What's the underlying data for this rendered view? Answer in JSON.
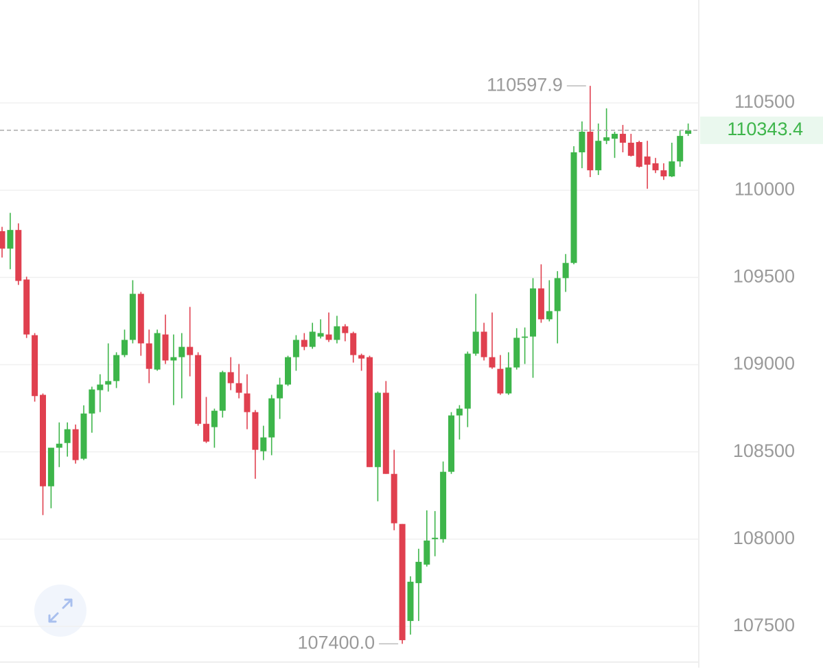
{
  "chart_data": {
    "type": "candlestick",
    "up_color": "#3db54a",
    "down_color": "#e0404f",
    "ylim": [
      107264,
      111090
    ],
    "yticks": [
      107500,
      108000,
      108500,
      109000,
      109500,
      110000,
      110500
    ],
    "grid": true,
    "high_marker": 110597.9,
    "low_marker": {
      "value": 107400,
      "label": "107400.0"
    },
    "last_price": 110343.4,
    "open": [
      109765,
      109665,
      109772,
      109488,
      109169,
      108827,
      108303,
      108524,
      108551,
      108630,
      108461,
      108720,
      108854,
      108886,
      108906,
      109055,
      109142,
      109406,
      109122,
      108972,
      109173,
      109024,
      109043,
      109102,
      109055,
      108661,
      108642,
      108736,
      108957,
      108894,
      108835,
      108728,
      108504,
      108583,
      108807,
      108886,
      109043,
      109142,
      109102,
      109161,
      109173,
      109142,
      109220,
      109181,
      109055,
      109043,
      108413,
      108839,
      108374,
      108087,
      107531,
      107748,
      107854,
      108000,
      108000,
      108386,
      108709,
      108748,
      109063,
      109189,
      109043,
      108976,
      108835,
      108984,
      109154,
      109161,
      109437,
      109260,
      109307,
      109496,
      109583,
      110217,
      110335,
      110114,
      110283,
      110295,
      110323,
      110272,
      110276,
      110193,
      110154,
      110114,
      110079,
      110165,
      110323
    ],
    "high": [
      109790,
      109870,
      109810,
      109504,
      109181,
      108835,
      108524,
      108669,
      108669,
      108657,
      108767,
      108874,
      108945,
      109122,
      109071,
      109201,
      109484,
      109417,
      109201,
      109201,
      109287,
      109173,
      109181,
      109331,
      109071,
      108815,
      108748,
      108965,
      109043,
      109004,
      108945,
      108740,
      108650,
      108827,
      108925,
      109051,
      109169,
      109181,
      109240,
      109260,
      109299,
      109280,
      109232,
      109189,
      109063,
      109051,
      108846,
      108906,
      108512,
      108087,
      107787,
      107945,
      108165,
      108161,
      108445,
      108728,
      108768,
      109075,
      109406,
      109240,
      109299,
      109055,
      109071,
      109209,
      109213,
      109496,
      109575,
      109484,
      109536,
      109634,
      110252,
      110394,
      110597.9,
      110382,
      110469,
      110335,
      110374,
      110323,
      110283,
      110283,
      110185,
      110154,
      110272,
      110343,
      110382
    ],
    "low": [
      109614,
      109547,
      109457,
      109153,
      108788,
      108138,
      108177,
      108413,
      108473,
      108433,
      108453,
      108610,
      108728,
      108846,
      108866,
      109043,
      109122,
      109051,
      108894,
      108965,
      109004,
      108768,
      108807,
      108933,
      108650,
      108551,
      108524,
      108697,
      108854,
      108807,
      108630,
      108346,
      108453,
      108481,
      108689,
      108878,
      108965,
      109083,
      109091,
      109150,
      109130,
      109122,
      109134,
      109012,
      108965,
      108413,
      108217,
      108374,
      108051,
      107400,
      107453,
      107531,
      107843,
      107902,
      107980,
      108374,
      108571,
      108642,
      109051,
      109024,
      108976,
      108827,
      108827,
      108972,
      109004,
      108925,
      109240,
      109248,
      109122,
      109417,
      109575,
      110126,
      110075,
      110087,
      110264,
      110185,
      110217,
      110193,
      110130,
      110008,
      110098,
      110059,
      110075,
      110134,
      110311
    ],
    "close": [
      109665,
      109772,
      109480,
      109173,
      108820,
      108303,
      108524,
      108547,
      108630,
      108453,
      108720,
      108858,
      108886,
      108906,
      109055,
      109142,
      109406,
      109122,
      108976,
      109181,
      109024,
      109043,
      109102,
      109055,
      108661,
      108559,
      108736,
      108957,
      108894,
      108839,
      108728,
      108512,
      108583,
      108807,
      108886,
      109043,
      109142,
      109102,
      109189,
      109181,
      109142,
      109220,
      109181,
      109055,
      109035,
      108413,
      108839,
      108374,
      108091,
      107421,
      107756,
      107870,
      107992,
      108008,
      108386,
      108709,
      108748,
      109063,
      109189,
      109043,
      108984,
      108835,
      108984,
      109154,
      109161,
      109437,
      109260,
      109307,
      109496,
      109583,
      110217,
      110335,
      110114,
      110283,
      110303,
      110323,
      110272,
      110197,
      110134,
      110146,
      110114,
      110079,
      110165,
      110311,
      110343.4
    ]
  }
}
